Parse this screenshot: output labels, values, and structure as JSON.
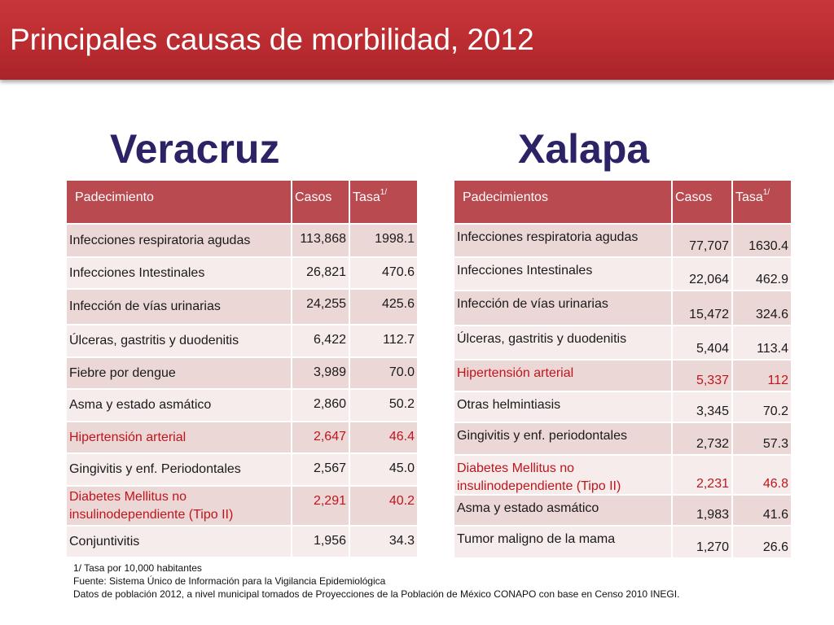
{
  "header": {
    "title": "Principales causas de morbilidad, 2012"
  },
  "veracruz": {
    "region": "Veracruz",
    "columns": [
      "Padecimiento",
      "Casos",
      "Tasa1/"
    ],
    "rows": [
      {
        "name": "Infecciones respiratoria agudas",
        "cases": "113,868",
        "rate": "1998.1",
        "highlight": false
      },
      {
        "name": "Infecciones Intestinales",
        "cases": "26,821",
        "rate": "470.6",
        "highlight": false
      },
      {
        "name": "Infección de vías urinarias",
        "cases": "24,255",
        "rate": "425.6",
        "highlight": false
      },
      {
        "name": "Úlceras, gastritis y duodenitis",
        "cases": "6,422",
        "rate": "112.7",
        "highlight": false
      },
      {
        "name": "Fiebre por dengue",
        "cases": "3,989",
        "rate": "70.0",
        "highlight": false
      },
      {
        "name": "Asma y estado asmático",
        "cases": "2,860",
        "rate": "50.2",
        "highlight": false
      },
      {
        "name": "Hipertensión arterial",
        "cases": "2,647",
        "rate": "46.4",
        "highlight": true
      },
      {
        "name": "Gingivitis y enf. Periodontales",
        "cases": "2,567",
        "rate": "45.0",
        "highlight": false
      },
      {
        "name": "Diabetes Mellitus no insulinodependiente (Tipo II)",
        "cases": "2,291",
        "rate": "40.2",
        "highlight": true
      },
      {
        "name": "Conjuntivitis",
        "cases": "1,956",
        "rate": "34.3",
        "highlight": false
      }
    ]
  },
  "xalapa": {
    "region": "Xalapa",
    "columns": [
      "Padecimientos",
      "Casos",
      "Tasa1/"
    ],
    "rows": [
      {
        "name": "Infecciones respiratoria agudas",
        "cases": "77,707",
        "rate": "1630.4",
        "highlight": false
      },
      {
        "name": "Infecciones Intestinales",
        "cases": "22,064",
        "rate": "462.9",
        "highlight": false
      },
      {
        "name": "Infección de vías urinarias",
        "cases": "15,472",
        "rate": "324.6",
        "highlight": false
      },
      {
        "name": "Úlceras, gastritis y duodenitis",
        "cases": "5,404",
        "rate": "113.4",
        "highlight": false
      },
      {
        "name": "Hipertensión arterial",
        "cases": "5,337",
        "rate": "112",
        "highlight": true
      },
      {
        "name": "Otras helmintiasis",
        "cases": "3,345",
        "rate": "70.2",
        "highlight": false
      },
      {
        "name": "Gingivitis y enf. periodontales",
        "cases": "2,732",
        "rate": "57.3",
        "highlight": false
      },
      {
        "name": "Diabetes Mellitus no insulinodependiente (Tipo II)",
        "cases": "2,231",
        "rate": "46.8",
        "highlight": true
      },
      {
        "name": "Asma y estado asmático",
        "cases": "1,983",
        "rate": "41.6",
        "highlight": false
      },
      {
        "name": "Tumor maligno de la mama",
        "cases": "1,270",
        "rate": "26.6",
        "highlight": false
      }
    ]
  },
  "footnotes": {
    "rate_note": "1/ Tasa por 10,000 habitantes",
    "source": "Fuente: Sistema Único de Información para la Vigilancia Epidemiológica",
    "population": "Datos de población  2012, a nivel municipal tomados de Proyecciones de la Población de México CONAPO con base en Censo 2010 INEGI."
  },
  "colors": {
    "header_band": "#b92b30",
    "region_title": "#2b2366",
    "table_header": "#b84a50",
    "row_odd": "#ecd7d7",
    "row_even": "#f6ecec",
    "highlight_text": "#c0151b"
  }
}
